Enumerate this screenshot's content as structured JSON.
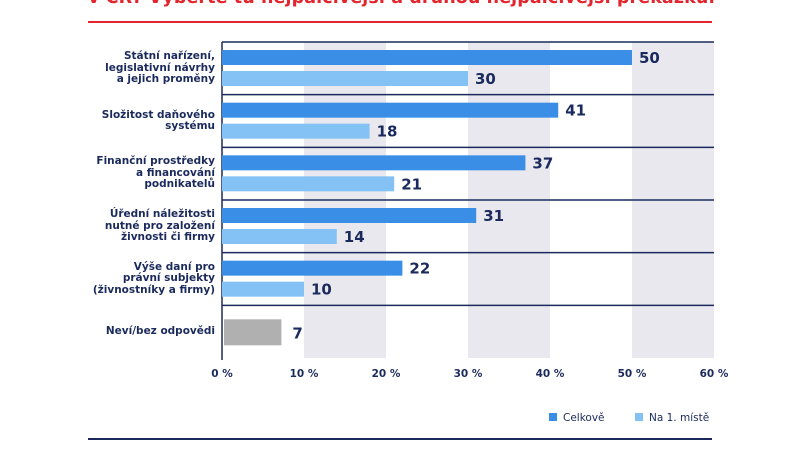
{
  "title": "v ČR? Vyberte tu nejpalčivější a druhou nejpalčivější překážku.",
  "chart_data": {
    "type": "bar",
    "orientation": "horizontal",
    "xlim": [
      0,
      60
    ],
    "xticks": [
      "0 %",
      "10 %",
      "20 %",
      "30 %",
      "40 %",
      "50 %",
      "60 %"
    ],
    "categories": [
      [
        "Státní nařízení,",
        "legislativní návrhy",
        "a jejich proměny"
      ],
      [
        "Složitost daňového",
        "systému"
      ],
      [
        "Finanční prostředky",
        "a financování",
        "podnikatelů"
      ],
      [
        "Úřední náležitosti",
        "nutné pro založení",
        "živnosti či firmy"
      ],
      [
        "Výše daní pro",
        "právní subjekty",
        "(živnostníky a firmy)"
      ],
      [
        "Neví/bez odpovědi"
      ]
    ],
    "series": [
      {
        "name": "Celkově",
        "color": "#3b8ee6",
        "values": [
          50,
          41,
          37,
          31,
          22,
          null
        ]
      },
      {
        "name": "Na 1. místě",
        "color": "#84c2f5",
        "values": [
          30,
          18,
          21,
          14,
          10,
          null
        ]
      }
    ],
    "extra": {
      "category_index": 5,
      "value": 7,
      "color": "#b0b0b0"
    },
    "legend": "bottom-right"
  }
}
